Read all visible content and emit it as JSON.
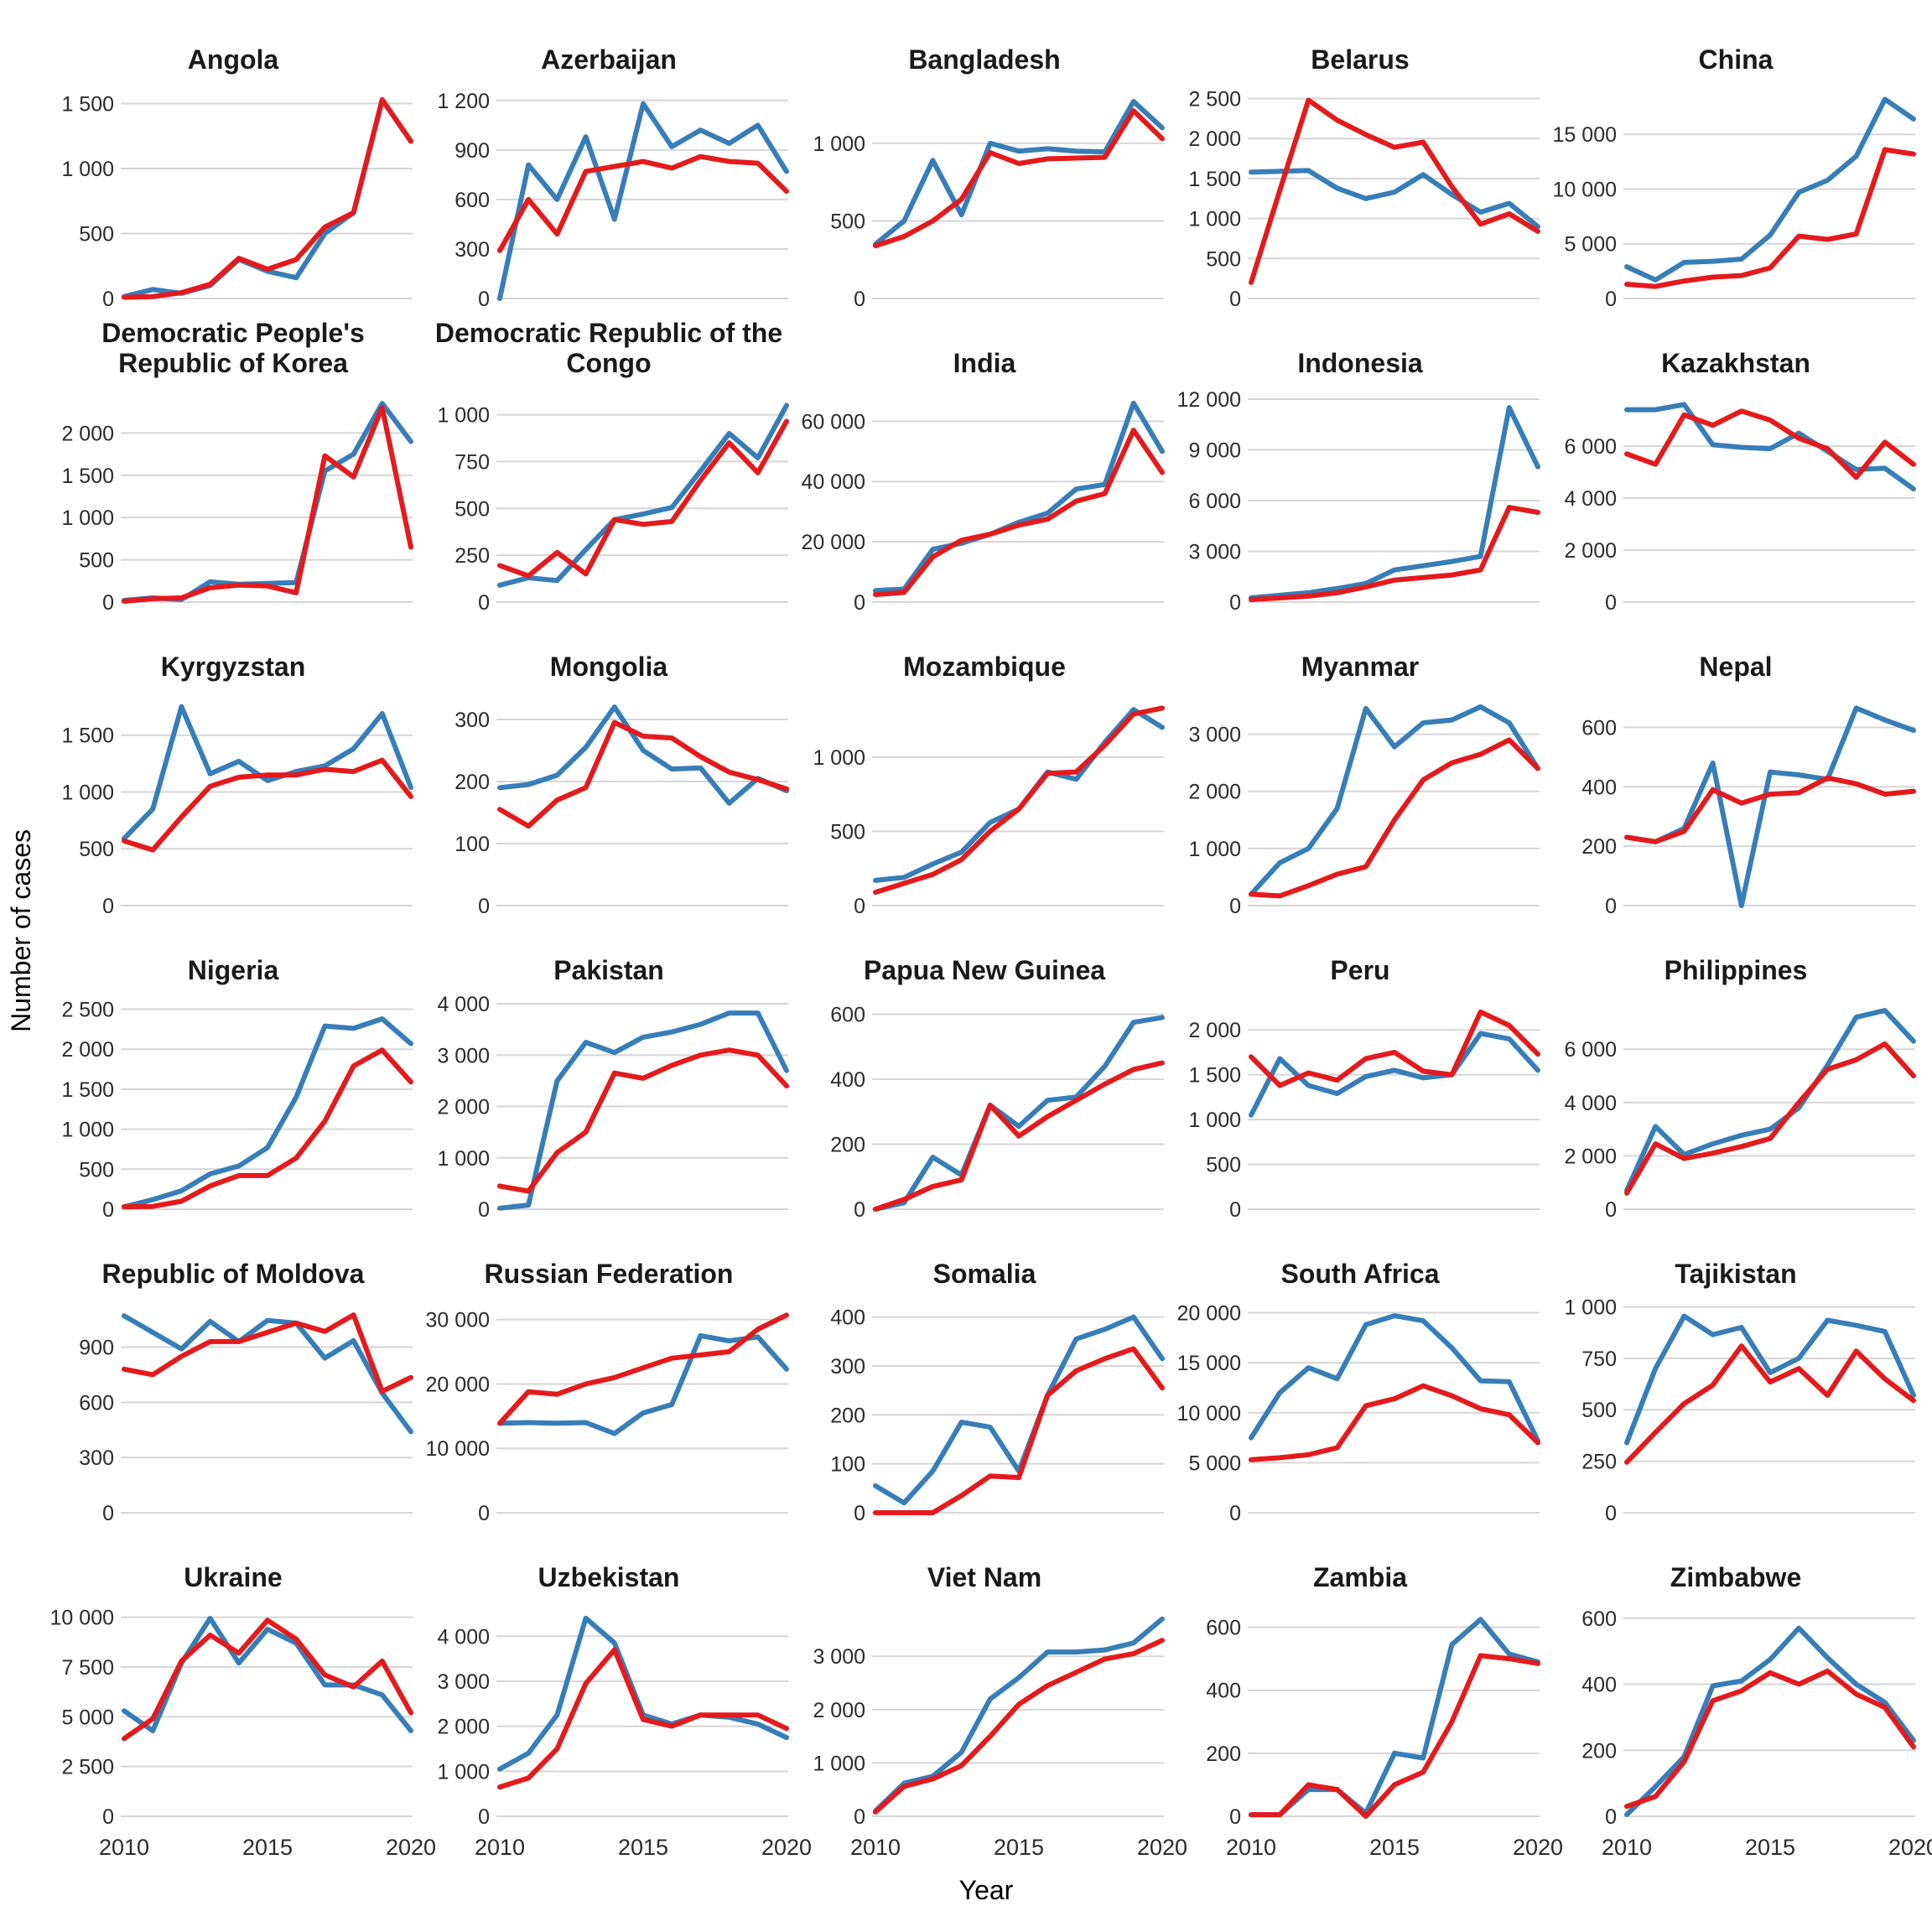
{
  "chart_data": {
    "type": "line",
    "layout": "small-multiples-grid-5x6",
    "x": [
      2010,
      2011,
      2012,
      2013,
      2014,
      2015,
      2016,
      2017,
      2018,
      2019,
      2020
    ],
    "xticks": [
      2010,
      2015,
      2020
    ],
    "xlabel": "Year",
    "ylabel": "Number of cases",
    "grid": "horizontal-only",
    "legend": "none",
    "series_colors": {
      "blue": "#377EB8",
      "red": "#E41A1C"
    },
    "panels": [
      {
        "title": "Angola",
        "ymax": 1600,
        "yticks": [
          0,
          500,
          1000,
          1500
        ],
        "series": {
          "blue": [
            15,
            70,
            40,
            100,
            300,
            210,
            160,
            500,
            660,
            1530,
            1210
          ],
          "red": [
            10,
            15,
            45,
            110,
            310,
            225,
            300,
            550,
            660,
            1530,
            1210
          ]
        }
      },
      {
        "title": "Azerbaijan",
        "ymax": 1260,
        "yticks": [
          0,
          300,
          600,
          900,
          1200
        ],
        "series": {
          "blue": [
            0,
            810,
            600,
            980,
            480,
            1180,
            920,
            1020,
            940,
            1050,
            770
          ],
          "red": [
            290,
            600,
            390,
            770,
            800,
            830,
            790,
            860,
            830,
            820,
            650
          ]
        }
      },
      {
        "title": "Bangladesh",
        "ymax": 1340,
        "yticks": [
          0,
          500,
          1000
        ],
        "series": {
          "blue": [
            350,
            500,
            890,
            540,
            1000,
            950,
            965,
            950,
            945,
            1270,
            1100
          ],
          "red": [
            340,
            400,
            500,
            640,
            940,
            870,
            900,
            905,
            910,
            1210,
            1030
          ]
        }
      },
      {
        "title": "Belarus",
        "ymax": 2600,
        "yticks": [
          0,
          500,
          1000,
          1500,
          2000,
          2500
        ],
        "series": {
          "blue": [
            1580,
            1590,
            1600,
            1380,
            1250,
            1330,
            1550,
            1300,
            1080,
            1190,
            900
          ],
          "red": [
            200,
            1350,
            2480,
            2230,
            2050,
            1890,
            1955,
            1400,
            930,
            1060,
            840
          ]
        }
      },
      {
        "title": "China",
        "ymax": 19000,
        "yticks": [
          0,
          5000,
          10000,
          15000
        ],
        "series": {
          "blue": [
            2900,
            1700,
            3300,
            3400,
            3600,
            5800,
            9700,
            10800,
            13000,
            18200,
            16400
          ],
          "red": [
            1300,
            1100,
            1600,
            1950,
            2100,
            2800,
            5700,
            5400,
            5900,
            13600,
            13200
          ]
        }
      },
      {
        "title": "Democratic People's Republic of Korea",
        "ymax": 2460,
        "yticks": [
          0,
          500,
          1000,
          1500,
          2000
        ],
        "series": {
          "blue": [
            20,
            50,
            30,
            240,
            210,
            220,
            230,
            1550,
            1750,
            2350,
            1900
          ],
          "red": [
            10,
            40,
            50,
            170,
            200,
            190,
            110,
            1730,
            1480,
            2300,
            650
          ]
        }
      },
      {
        "title": "Democratic Republic of the Congo",
        "ymax": 1110,
        "yticks": [
          0,
          250,
          500,
          750,
          1000
        ],
        "series": {
          "blue": [
            90,
            130,
            115,
            280,
            440,
            470,
            505,
            700,
            900,
            770,
            1050
          ],
          "red": [
            195,
            140,
            265,
            150,
            440,
            415,
            430,
            650,
            850,
            690,
            965
          ]
        }
      },
      {
        "title": "India",
        "ymax": 69000,
        "yticks": [
          0,
          20000,
          40000,
          60000
        ],
        "series": {
          "blue": [
            3800,
            4300,
            17500,
            19500,
            22500,
            26500,
            29500,
            37500,
            39000,
            66000,
            50000
          ],
          "red": [
            2500,
            3200,
            15000,
            20500,
            22500,
            25500,
            27500,
            33500,
            36000,
            57000,
            43000
          ]
        }
      },
      {
        "title": "Indonesia",
        "ymax": 12300,
        "yticks": [
          0,
          3000,
          6000,
          9000,
          12000
        ],
        "series": {
          "blue": [
            250,
            400,
            550,
            800,
            1100,
            1900,
            2150,
            2400,
            2700,
            11500,
            8000
          ],
          "red": [
            150,
            250,
            350,
            550,
            900,
            1300,
            1450,
            1600,
            1900,
            5600,
            5300
          ]
        }
      },
      {
        "title": "Kazakhstan",
        "ymax": 8000,
        "yticks": [
          0,
          2000,
          4000,
          6000
        ],
        "series": {
          "blue": [
            7400,
            7400,
            7600,
            6050,
            5950,
            5900,
            6500,
            5800,
            5100,
            5150,
            4350
          ],
          "red": [
            5700,
            5300,
            7200,
            6800,
            7350,
            7000,
            6300,
            5900,
            4800,
            6150,
            5300
          ]
        }
      },
      {
        "title": "Kyrgyzstan",
        "ymax": 1830,
        "yticks": [
          0,
          500,
          1000,
          1500
        ],
        "series": {
          "blue": [
            590,
            850,
            1750,
            1160,
            1270,
            1100,
            1180,
            1230,
            1380,
            1690,
            1040
          ],
          "red": [
            570,
            490,
            780,
            1050,
            1130,
            1150,
            1150,
            1200,
            1180,
            1280,
            960
          ]
        }
      },
      {
        "title": "Mongolia",
        "ymax": 335,
        "yticks": [
          0,
          100,
          200,
          300
        ],
        "series": {
          "blue": [
            190,
            195,
            210,
            255,
            320,
            250,
            220,
            222,
            165,
            205,
            185
          ],
          "red": [
            155,
            128,
            170,
            190,
            295,
            273,
            270,
            240,
            215,
            203,
            188
          ]
        }
      },
      {
        "title": "Mozambique",
        "ymax": 1400,
        "yticks": [
          0,
          500,
          1000
        ],
        "series": {
          "blue": [
            170,
            190,
            280,
            360,
            560,
            650,
            900,
            850,
            1100,
            1320,
            1200
          ],
          "red": [
            90,
            150,
            210,
            310,
            500,
            650,
            890,
            900,
            1080,
            1290,
            1330
          ]
        }
      },
      {
        "title": "Myanmar",
        "ymax": 3640,
        "yticks": [
          0,
          1000,
          2000,
          3000
        ],
        "series": {
          "blue": [
            200,
            750,
            1000,
            1700,
            3450,
            2780,
            3200,
            3250,
            3480,
            3200,
            2400
          ],
          "red": [
            200,
            170,
            350,
            550,
            680,
            1500,
            2200,
            2500,
            2650,
            2900,
            2400
          ]
        }
      },
      {
        "title": "Nepal",
        "ymax": 700,
        "yticks": [
          0,
          200,
          400,
          600
        ],
        "series": {
          "blue": [
            230,
            215,
            260,
            480,
            0,
            450,
            440,
            425,
            665,
            625,
            590
          ],
          "red": [
            230,
            215,
            250,
            390,
            345,
            375,
            380,
            430,
            410,
            375,
            385
          ]
        }
      },
      {
        "title": "Nigeria",
        "ymax": 2600,
        "yticks": [
          0,
          500,
          1000,
          1500,
          2000,
          2500
        ],
        "series": {
          "blue": [
            30,
            120,
            230,
            440,
            540,
            770,
            1400,
            2290,
            2260,
            2380,
            2070
          ],
          "red": [
            30,
            35,
            100,
            290,
            420,
            420,
            640,
            1100,
            1790,
            1990,
            1590
          ]
        }
      },
      {
        "title": "Pakistan",
        "ymax": 4050,
        "yticks": [
          0,
          1000,
          2000,
          3000,
          4000
        ],
        "series": {
          "blue": [
            20,
            80,
            2500,
            3250,
            3050,
            3350,
            3450,
            3600,
            3820,
            3820,
            2700
          ],
          "red": [
            450,
            350,
            1100,
            1500,
            2650,
            2550,
            2800,
            3000,
            3100,
            3000,
            2400
          ]
        }
      },
      {
        "title": "Papua New Guinea",
        "ymax": 640,
        "yticks": [
          0,
          200,
          400,
          600
        ],
        "series": {
          "blue": [
            0,
            20,
            160,
            105,
            320,
            255,
            335,
            345,
            440,
            575,
            590
          ],
          "red": [
            0,
            30,
            70,
            90,
            320,
            225,
            285,
            335,
            385,
            430,
            450
          ]
        }
      },
      {
        "title": "Peru",
        "ymax": 2320,
        "yticks": [
          0,
          500,
          1000,
          1500,
          2000
        ],
        "series": {
          "blue": [
            1050,
            1680,
            1380,
            1290,
            1480,
            1550,
            1465,
            1500,
            1960,
            1900,
            1550
          ],
          "red": [
            1700,
            1380,
            1520,
            1440,
            1680,
            1750,
            1540,
            1500,
            2200,
            2050,
            1730
          ]
        }
      },
      {
        "title": "Philippines",
        "ymax": 7800,
        "yticks": [
          0,
          2000,
          4000,
          6000
        ],
        "series": {
          "blue": [
            700,
            3100,
            2050,
            2450,
            2770,
            3000,
            3800,
            5400,
            7200,
            7450,
            6300
          ],
          "red": [
            600,
            2450,
            1900,
            2100,
            2350,
            2650,
            4000,
            5250,
            5600,
            6200,
            5000
          ]
        }
      },
      {
        "title": "Republic of Moldova",
        "ymax": 1130,
        "yticks": [
          0,
          300,
          600,
          900
        ],
        "series": {
          "blue": [
            1070,
            980,
            890,
            1040,
            930,
            1045,
            1030,
            840,
            935,
            650,
            440
          ],
          "red": [
            780,
            750,
            850,
            930,
            930,
            980,
            1030,
            985,
            1075,
            660,
            735
          ]
        }
      },
      {
        "title": "Russian Federation",
        "ymax": 32300,
        "yticks": [
          0,
          10000,
          20000,
          30000
        ],
        "series": {
          "blue": [
            13900,
            14000,
            13900,
            14000,
            12300,
            15500,
            16800,
            27500,
            26700,
            27300,
            22300
          ],
          "red": [
            13900,
            18800,
            18400,
            20000,
            21000,
            22500,
            24000,
            24500,
            25000,
            28500,
            30700
          ]
        }
      },
      {
        "title": "Somalia",
        "ymax": 425,
        "yticks": [
          0,
          100,
          200,
          300,
          400
        ],
        "series": {
          "blue": [
            55,
            20,
            85,
            185,
            175,
            85,
            240,
            355,
            375,
            400,
            315
          ],
          "red": [
            0,
            0,
            0,
            35,
            75,
            72,
            240,
            290,
            315,
            335,
            255
          ]
        }
      },
      {
        "title": "South Africa",
        "ymax": 20800,
        "yticks": [
          0,
          5000,
          10000,
          15000,
          20000
        ],
        "series": {
          "blue": [
            7500,
            12000,
            14500,
            13400,
            18800,
            19700,
            19200,
            16500,
            13200,
            13100,
            7200
          ],
          "red": [
            5300,
            5500,
            5800,
            6500,
            10700,
            11400,
            12700,
            11700,
            10400,
            9800,
            7000
          ]
        }
      },
      {
        "title": "Tajikistan",
        "ymax": 1010,
        "yticks": [
          0,
          250,
          500,
          750,
          1000
        ],
        "series": {
          "blue": [
            340,
            700,
            955,
            865,
            900,
            680,
            750,
            935,
            910,
            880,
            570
          ],
          "red": [
            245,
            390,
            530,
            620,
            810,
            635,
            700,
            570,
            785,
            650,
            545
          ]
        }
      },
      {
        "title": "Ukraine",
        "ymax": 10450,
        "yticks": [
          0,
          2500,
          5000,
          7500,
          10000
        ],
        "series": {
          "blue": [
            5300,
            4300,
            7700,
            9950,
            7700,
            9400,
            8700,
            6600,
            6600,
            6100,
            4300
          ],
          "red": [
            3900,
            4900,
            7800,
            9100,
            8200,
            9850,
            8900,
            7100,
            6500,
            7800,
            5200
          ]
        }
      },
      {
        "title": "Uzbekistan",
        "ymax": 4620,
        "yticks": [
          0,
          1000,
          2000,
          3000,
          4000
        ],
        "series": {
          "blue": [
            1050,
            1400,
            2250,
            4400,
            3850,
            2250,
            2050,
            2250,
            2200,
            2050,
            1750
          ],
          "red": [
            650,
            850,
            1500,
            2950,
            3700,
            2150,
            2000,
            2250,
            2250,
            2250,
            1950
          ]
        }
      },
      {
        "title": "Viet Nam",
        "ymax": 3900,
        "yticks": [
          0,
          1000,
          2000,
          3000
        ],
        "series": {
          "blue": [
            100,
            620,
            750,
            1200,
            2200,
            2600,
            3080,
            3080,
            3120,
            3250,
            3700
          ],
          "red": [
            80,
            560,
            700,
            950,
            1500,
            2100,
            2450,
            2700,
            2950,
            3050,
            3300
          ]
        }
      },
      {
        "title": "Zambia",
        "ymax": 660,
        "yticks": [
          0,
          200,
          400,
          600
        ],
        "series": {
          "blue": [
            5,
            5,
            85,
            85,
            10,
            200,
            185,
            545,
            625,
            515,
            490
          ],
          "red": [
            5,
            5,
            100,
            85,
            0,
            100,
            140,
            300,
            510,
            500,
            485
          ]
        }
      },
      {
        "title": "Zimbabwe",
        "ymax": 630,
        "yticks": [
          0,
          200,
          400,
          600
        ],
        "series": {
          "blue": [
            5,
            90,
            180,
            395,
            410,
            475,
            570,
            480,
            400,
            345,
            230
          ],
          "red": [
            30,
            60,
            165,
            350,
            380,
            435,
            400,
            440,
            370,
            330,
            210
          ]
        }
      }
    ]
  }
}
